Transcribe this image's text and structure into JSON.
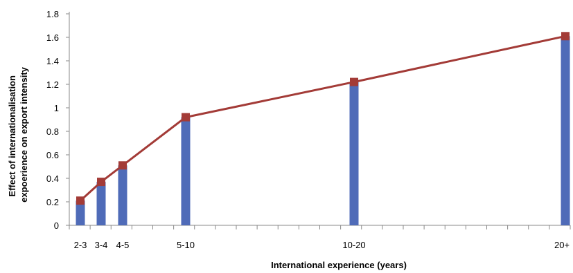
{
  "chart_data": {
    "type": "bar",
    "title": "",
    "xlabel": "International experience (years)",
    "ylabel_lines": [
      "Effect of internationalisation",
      "expoerience on export intensity"
    ],
    "x_is_numeric_years": true,
    "x_range": [
      0,
      21
    ],
    "categories": [
      {
        "label": "2-3",
        "year": 2.5
      },
      {
        "label": "3-4",
        "year": 3.5
      },
      {
        "label": "4-5",
        "year": 4.5
      },
      {
        "label": "5-10",
        "year": 7.5
      },
      {
        "label": "10-20",
        "year": 15
      },
      {
        "label": "20+",
        "year": 25
      }
    ],
    "series": [
      {
        "kind": "bar",
        "values": [
          0.21,
          0.37,
          0.51,
          0.92,
          1.22,
          1.61
        ]
      },
      {
        "kind": "line",
        "values": [
          0.21,
          0.37,
          0.51,
          0.92,
          1.22,
          1.61
        ]
      }
    ],
    "ylim": [
      0,
      1.8
    ],
    "yticks": [
      "0",
      "0.2",
      "0.4",
      "0.6",
      "0.8",
      "1",
      "1.2",
      "1.4",
      "1.6",
      "1.8"
    ],
    "grid": false,
    "legend": "none",
    "colors": {
      "bar": "#4F6BB8",
      "line": "#A33B37",
      "marker": "#A33B37",
      "axis": "#888888"
    }
  }
}
